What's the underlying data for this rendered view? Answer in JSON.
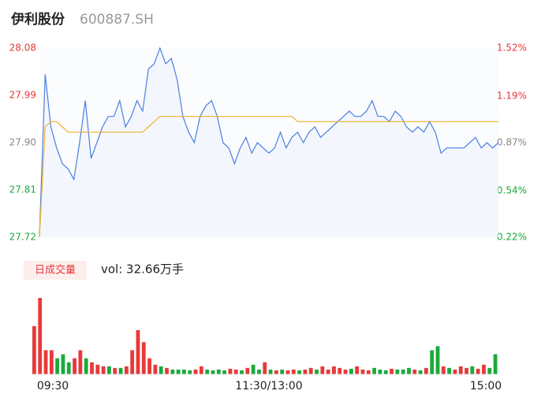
{
  "chart_data": {
    "type": "intraday",
    "title": "伊利股份",
    "code": "600887.SH",
    "ylim": [
      27.72,
      28.08
    ],
    "yticks": [
      {
        "value": 28.08,
        "label": "28.08"
      },
      {
        "value": 27.99,
        "label": "27.99"
      },
      {
        "value": 27.9,
        "label": "27.90"
      },
      {
        "value": 27.81,
        "label": "27.81"
      },
      {
        "value": 27.72,
        "label": "27.72"
      }
    ],
    "ytick_colors": [
      "#e8393a",
      "#e8393a",
      "#888888",
      "#1aaa3a",
      "#1aaa3a"
    ],
    "y2lim": [
      0.22,
      1.52
    ],
    "y2ticks": [
      {
        "value": 1.52,
        "label": "1.52%"
      },
      {
        "value": 1.19,
        "label": "1.19%"
      },
      {
        "value": 0.87,
        "label": "0.87%"
      },
      {
        "value": 0.54,
        "label": "0.54%"
      },
      {
        "value": 0.22,
        "label": "0.22%"
      }
    ],
    "x_labels": [
      "09:30",
      "11:30/13:00",
      "15:00"
    ],
    "series": [
      {
        "name": "price",
        "color": "#4a7fe0",
        "values": [
          27.72,
          28.03,
          27.93,
          27.89,
          27.86,
          27.85,
          27.83,
          27.9,
          27.98,
          27.87,
          27.9,
          27.93,
          27.95,
          27.95,
          27.98,
          27.93,
          27.95,
          27.98,
          27.96,
          28.04,
          28.05,
          28.08,
          28.05,
          28.06,
          28.02,
          27.95,
          27.92,
          27.9,
          27.95,
          27.97,
          27.98,
          27.95,
          27.9,
          27.89,
          27.86,
          27.89,
          27.91,
          27.88,
          27.9,
          27.89,
          27.88,
          27.89,
          27.92,
          27.89,
          27.91,
          27.92,
          27.9,
          27.92,
          27.93,
          27.91,
          27.92,
          27.93,
          27.94,
          27.95,
          27.96,
          27.95,
          27.95,
          27.96,
          27.98,
          27.95,
          27.95,
          27.94,
          27.96,
          27.95,
          27.93,
          27.92,
          27.93,
          27.92,
          27.94,
          27.92,
          27.88,
          27.89,
          27.89,
          27.89,
          27.89,
          27.9,
          27.91,
          27.89,
          27.9,
          27.89,
          27.9
        ]
      },
      {
        "name": "average",
        "color": "#f0b030",
        "values": [
          27.72,
          27.93,
          27.94,
          27.94,
          27.93,
          27.92,
          27.92,
          27.92,
          27.92,
          27.92,
          27.92,
          27.92,
          27.92,
          27.92,
          27.92,
          27.92,
          27.92,
          27.92,
          27.92,
          27.93,
          27.94,
          27.95,
          27.95,
          27.95,
          27.95,
          27.95,
          27.95,
          27.95,
          27.95,
          27.95,
          27.95,
          27.95,
          27.95,
          27.95,
          27.95,
          27.95,
          27.95,
          27.95,
          27.95,
          27.95,
          27.95,
          27.95,
          27.95,
          27.95,
          27.95,
          27.94,
          27.94,
          27.94,
          27.94,
          27.94,
          27.94,
          27.94,
          27.94,
          27.94,
          27.94,
          27.94,
          27.94,
          27.94,
          27.94,
          27.94,
          27.94,
          27.94,
          27.94,
          27.94,
          27.94,
          27.94,
          27.94,
          27.94,
          27.94,
          27.94,
          27.94,
          27.94,
          27.94,
          27.94,
          27.94,
          27.94,
          27.94,
          27.94,
          27.94,
          27.94,
          27.94
        ]
      }
    ],
    "volume": {
      "legend": "日成交量",
      "label": "vol: 32.66万手",
      "up_color": "#e8393a",
      "down_color": "#1aaa3a",
      "values": [
        0.6,
        0.95,
        0.3,
        0.3,
        0.2,
        0.25,
        0.15,
        0.2,
        0.3,
        0.2,
        0.15,
        0.12,
        0.1,
        0.1,
        0.08,
        0.08,
        0.1,
        0.3,
        0.55,
        0.4,
        0.2,
        0.12,
        0.1,
        0.08,
        0.06,
        0.06,
        0.06,
        0.05,
        0.06,
        0.1,
        0.06,
        0.05,
        0.06,
        0.05,
        0.07,
        0.06,
        0.05,
        0.08,
        0.12,
        0.06,
        0.15,
        0.06,
        0.05,
        0.06,
        0.05,
        0.06,
        0.05,
        0.06,
        0.08,
        0.06,
        0.1,
        0.06,
        0.1,
        0.08,
        0.06,
        0.07,
        0.1,
        0.06,
        0.05,
        0.08,
        0.06,
        0.05,
        0.07,
        0.06,
        0.06,
        0.08,
        0.06,
        0.05,
        0.08,
        0.3,
        0.35,
        0.1,
        0.08,
        0.06,
        0.1,
        0.08,
        0.1,
        0.07,
        0.12,
        0.08,
        0.25
      ],
      "up": [
        true,
        true,
        true,
        true,
        false,
        false,
        false,
        true,
        true,
        false,
        true,
        true,
        true,
        false,
        true,
        false,
        true,
        true,
        true,
        true,
        true,
        true,
        false,
        true,
        false,
        false,
        false,
        false,
        true,
        true,
        false,
        false,
        false,
        false,
        true,
        true,
        false,
        true,
        false,
        false,
        true,
        false,
        true,
        false,
        true,
        true,
        false,
        true,
        true,
        false,
        true,
        true,
        true,
        true,
        true,
        false,
        true,
        true,
        true,
        false,
        false,
        false,
        true,
        false,
        false,
        false,
        true,
        false,
        true,
        false,
        false,
        true,
        false,
        true,
        true,
        true,
        false,
        true,
        true,
        false,
        false
      ]
    }
  }
}
